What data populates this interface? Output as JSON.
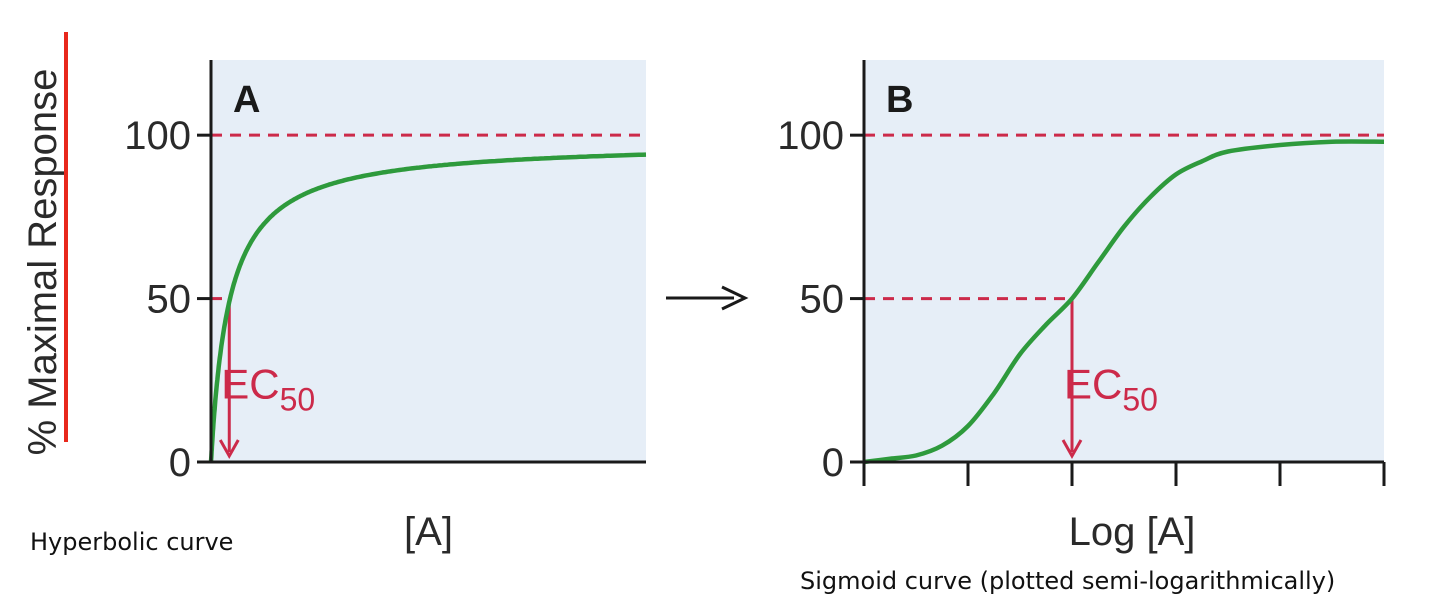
{
  "colors": {
    "plot_background": "#e6eef7",
    "curve": "#2e9a3c",
    "reference": "#cc2a4a",
    "axis": "#1a1a1a",
    "y_label_rule": "#e8281c"
  },
  "y_axis_label": "% Maximal Response",
  "transition_arrow_icon": "right-arrow-icon",
  "chart_data": [
    {
      "type": "line",
      "panel_label": "A",
      "caption": "Hyperbolic curve",
      "xlabel": "[A]",
      "ylabel": "% Maximal Response",
      "ylim": [
        0,
        123
      ],
      "y_ticks": [
        "0",
        "50",
        "100"
      ],
      "x_ticks": [],
      "xlim": [
        0,
        100
      ],
      "series": [
        {
          "function": "hyperbolic",
          "emax": 98,
          "x": [
            0,
            1,
            2,
            3,
            4,
            6,
            8,
            10,
            15,
            20,
            25,
            30,
            40,
            50,
            60,
            70,
            80,
            90,
            100
          ],
          "y": [
            0,
            33,
            48,
            57,
            63,
            71,
            76,
            80,
            85,
            88,
            90,
            91,
            93,
            94,
            95,
            95,
            96,
            96,
            96
          ]
        }
      ],
      "reference_lines": {
        "max_response": 100,
        "half_max": 50
      },
      "ec50": {
        "label": "EC",
        "subscript": "50",
        "x": 4.2,
        "y": 50
      }
    },
    {
      "type": "line",
      "panel_label": "B",
      "caption": "Sigmoid curve (plotted semi-logarithmically)",
      "xlabel": "Log [A]",
      "ylabel": "% Maximal Response",
      "ylim": [
        0,
        123
      ],
      "xlim": [
        0,
        5
      ],
      "y_ticks": [
        "0",
        "50",
        "100"
      ],
      "x_ticks": [
        "",
        "",
        "",
        "",
        "",
        ""
      ],
      "series": [
        {
          "function": "sigmoid",
          "x": [
            0,
            0.25,
            0.5,
            0.75,
            1,
            1.25,
            1.5,
            1.75,
            2,
            2.25,
            2.5,
            2.75,
            3,
            3.25,
            3.5,
            4,
            4.5,
            5
          ],
          "y": [
            0,
            1,
            2,
            5,
            11,
            21,
            33,
            42,
            50,
            61,
            72,
            81,
            88,
            92,
            95,
            97,
            98,
            98
          ]
        }
      ],
      "reference_lines": {
        "max_response": 100,
        "half_max": 50
      },
      "ec50": {
        "label": "EC",
        "subscript": "50",
        "x": 2,
        "y": 50
      }
    }
  ]
}
